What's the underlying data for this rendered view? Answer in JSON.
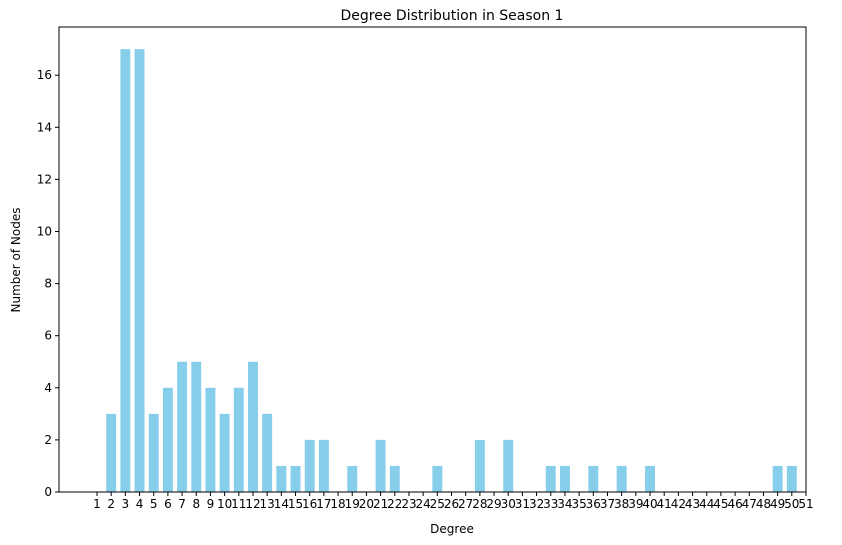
{
  "chart_data": {
    "type": "bar",
    "title": "Degree Distribution in Season 1",
    "xlabel": "Degree",
    "ylabel": "Number of Nodes",
    "categories": [
      1,
      2,
      3,
      4,
      5,
      6,
      7,
      8,
      9,
      10,
      11,
      12,
      13,
      14,
      15,
      16,
      17,
      18,
      19,
      20,
      21,
      22,
      23,
      24,
      25,
      26,
      27,
      28,
      29,
      30,
      31,
      32,
      33,
      34,
      35,
      36,
      37,
      38,
      39,
      40,
      41,
      42,
      43,
      44,
      45,
      46,
      47,
      48,
      49,
      50,
      51
    ],
    "values": [
      0,
      3,
      17,
      17,
      3,
      4,
      5,
      5,
      4,
      3,
      4,
      5,
      3,
      1,
      1,
      2,
      2,
      0,
      1,
      0,
      2,
      1,
      0,
      0,
      1,
      0,
      0,
      2,
      0,
      2,
      0,
      0,
      1,
      1,
      0,
      1,
      0,
      1,
      0,
      1,
      0,
      0,
      0,
      0,
      0,
      0,
      0,
      0,
      1,
      1,
      0
    ],
    "ylim": [
      0,
      17.85
    ],
    "yticks": [
      0,
      2,
      4,
      6,
      8,
      10,
      12,
      14,
      16
    ],
    "bar_color": "#87ceeb",
    "grid": false
  }
}
